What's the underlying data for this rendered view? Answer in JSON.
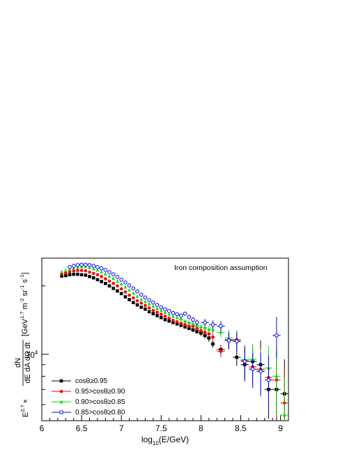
{
  "chart_data": {
    "type": "scatter",
    "annotation": "Iron composition assumption",
    "xlabel": {
      "main": "log",
      "sub": "10",
      "rest": "(E/GeV)"
    },
    "ylabel": {
      "factor": "E",
      "factor_exp": "2.7",
      "times": "×",
      "frac_num": "dN",
      "frac_den": "dE dA dΩ dt",
      "unit_open": "[GeV",
      "unit_exp1": "1.7",
      "unit_m": " m",
      "unit_exp2": "-2",
      "unit_sr": " sr",
      "unit_exp3": "-1",
      "unit_s": " s",
      "unit_exp4": "-1",
      "unit_close": "]"
    },
    "xlim": [
      6.0,
      9.1
    ],
    "ylim": [
      5100,
      26500
    ],
    "y_scale": "log",
    "x_ticks": [
      {
        "v": 6,
        "label": "6"
      },
      {
        "v": 6.5,
        "label": "6.5"
      },
      {
        "v": 7,
        "label": "7"
      },
      {
        "v": 7.5,
        "label": "7.5"
      },
      {
        "v": 8,
        "label": "8"
      },
      {
        "v": 8.5,
        "label": "8.5"
      },
      {
        "v": 9,
        "label": "9"
      }
    ],
    "y_major_tick": {
      "v": 10000,
      "base": "10",
      "exp": "4"
    },
    "grid": false,
    "legend_position": "bottom-left",
    "series": [
      {
        "name": "cosθ≥0.95",
        "color": "#000000",
        "marker": "filled-square",
        "points": [
          [
            6.25,
            22100,
            0,
            0
          ],
          [
            6.3,
            22200,
            0,
            0
          ],
          [
            6.35,
            22400,
            0,
            0
          ],
          [
            6.4,
            22500,
            0,
            0
          ],
          [
            6.45,
            22500,
            0,
            0
          ],
          [
            6.5,
            22400,
            0,
            0
          ],
          [
            6.55,
            22300,
            0,
            0
          ],
          [
            6.6,
            22000,
            0,
            0
          ],
          [
            6.65,
            21700,
            0,
            0
          ],
          [
            6.7,
            21300,
            0,
            0
          ],
          [
            6.75,
            20900,
            0,
            0
          ],
          [
            6.8,
            20500,
            0,
            0
          ],
          [
            6.85,
            20000,
            0,
            0
          ],
          [
            6.9,
            19500,
            0,
            0
          ],
          [
            6.95,
            19000,
            0,
            0
          ],
          [
            7.0,
            18500,
            0,
            0
          ],
          [
            7.05,
            17900,
            0,
            0
          ],
          [
            7.1,
            17400,
            0,
            0
          ],
          [
            7.15,
            16900,
            0,
            0
          ],
          [
            7.2,
            16500,
            0,
            0
          ],
          [
            7.25,
            16100,
            0,
            0
          ],
          [
            7.3,
            15800,
            0,
            0
          ],
          [
            7.35,
            15400,
            0,
            0
          ],
          [
            7.4,
            15100,
            0,
            0
          ],
          [
            7.45,
            14800,
            0,
            0
          ],
          [
            7.5,
            14500,
            0,
            0
          ],
          [
            7.55,
            14200,
            0,
            0
          ],
          [
            7.6,
            14000,
            0,
            0
          ],
          [
            7.65,
            13800,
            0,
            0
          ],
          [
            7.7,
            13600,
            0,
            0
          ],
          [
            7.75,
            13400,
            0,
            0
          ],
          [
            7.8,
            13200,
            0,
            0
          ],
          [
            7.85,
            13000,
            200,
            0.025
          ],
          [
            7.9,
            12800,
            250,
            0.025
          ],
          [
            7.95,
            12600,
            300,
            0.025
          ],
          [
            8.0,
            12400,
            350,
            0.025
          ],
          [
            8.05,
            12100,
            400,
            0.025
          ],
          [
            8.1,
            11800,
            450,
            0.025
          ],
          [
            8.15,
            11100,
            400,
            0.025
          ],
          [
            8.25,
            10500,
            500,
            0.05
          ],
          [
            8.35,
            11500,
            900,
            0.05
          ],
          [
            8.45,
            9700,
            800,
            0.05
          ],
          [
            8.55,
            9000,
            1400,
            0.05
          ],
          [
            8.65,
            9300,
            1400,
            0.05
          ],
          [
            8.75,
            9000,
            2500,
            0.05
          ],
          [
            8.85,
            7000,
            1800,
            0.05
          ],
          [
            8.95,
            7000,
            2500,
            0.05
          ],
          [
            9.05,
            6700,
            2800,
            0.05
          ]
        ]
      },
      {
        "name": "0.95>cosθ≥0.90",
        "color": "#ff0000",
        "marker": "filled-circle",
        "points": [
          [
            6.25,
            22600,
            0,
            0
          ],
          [
            6.3,
            22800,
            0,
            0
          ],
          [
            6.35,
            23100,
            0,
            0
          ],
          [
            6.4,
            23300,
            0,
            0
          ],
          [
            6.45,
            23400,
            0,
            0
          ],
          [
            6.5,
            23400,
            0,
            0
          ],
          [
            6.55,
            23300,
            0,
            0
          ],
          [
            6.6,
            23000,
            0,
            0
          ],
          [
            6.65,
            22700,
            0,
            0
          ],
          [
            6.7,
            22400,
            0,
            0
          ],
          [
            6.75,
            22000,
            0,
            0
          ],
          [
            6.8,
            21500,
            0,
            0
          ],
          [
            6.85,
            21000,
            0,
            0
          ],
          [
            6.9,
            20500,
            0,
            0
          ],
          [
            6.95,
            20000,
            0,
            0
          ],
          [
            7.0,
            19400,
            0,
            0
          ],
          [
            7.05,
            18800,
            0,
            0
          ],
          [
            7.1,
            18200,
            0,
            0
          ],
          [
            7.15,
            17700,
            0,
            0
          ],
          [
            7.2,
            17200,
            0,
            0
          ],
          [
            7.25,
            16800,
            0,
            0
          ],
          [
            7.3,
            16400,
            0,
            0
          ],
          [
            7.35,
            16000,
            0,
            0
          ],
          [
            7.4,
            15600,
            0,
            0
          ],
          [
            7.45,
            15300,
            0,
            0
          ],
          [
            7.5,
            15000,
            0,
            0
          ],
          [
            7.55,
            14700,
            0,
            0
          ],
          [
            7.6,
            14400,
            0,
            0
          ],
          [
            7.65,
            14100,
            0,
            0
          ],
          [
            7.7,
            13900,
            0,
            0
          ],
          [
            7.75,
            13700,
            0,
            0
          ],
          [
            7.8,
            13500,
            200,
            0.025
          ],
          [
            7.85,
            13300,
            250,
            0.025
          ],
          [
            7.9,
            13300,
            300,
            0.025
          ],
          [
            7.95,
            13000,
            300,
            0.025
          ],
          [
            8.0,
            12700,
            350,
            0.025
          ],
          [
            8.05,
            12500,
            400,
            0.025
          ],
          [
            8.1,
            12300,
            450,
            0.025
          ],
          [
            8.15,
            11900,
            450,
            0.025
          ],
          [
            8.25,
            10300,
            600,
            0.05
          ],
          [
            8.35,
            11600,
            1000,
            0.05
          ],
          [
            8.45,
            11600,
            1100,
            0.05
          ],
          [
            8.55,
            9400,
            1500,
            0.05
          ],
          [
            8.65,
            8800,
            1500,
            0.05
          ],
          [
            8.75,
            8600,
            2000,
            0.05
          ],
          [
            8.85,
            7900,
            2000,
            0.05
          ],
          [
            8.95,
            7700,
            2500,
            0.05
          ],
          [
            9.05,
            6100,
            2500,
            0.05
          ]
        ]
      },
      {
        "name": "0.90>cosθ≥0.85",
        "color": "#00dd00",
        "marker": "filled-triangle",
        "points": [
          [
            6.25,
            23100,
            0,
            0
          ],
          [
            6.3,
            23400,
            0,
            0
          ],
          [
            6.35,
            23700,
            0,
            0
          ],
          [
            6.4,
            24000,
            0,
            0
          ],
          [
            6.45,
            24200,
            0,
            0
          ],
          [
            6.5,
            24300,
            0,
            0
          ],
          [
            6.55,
            24300,
            0,
            0
          ],
          [
            6.6,
            24100,
            0,
            0
          ],
          [
            6.65,
            23800,
            0,
            0
          ],
          [
            6.7,
            23500,
            0,
            0
          ],
          [
            6.75,
            23100,
            0,
            0
          ],
          [
            6.8,
            22600,
            0,
            0
          ],
          [
            6.85,
            22100,
            0,
            0
          ],
          [
            6.9,
            21600,
            0,
            0
          ],
          [
            6.95,
            21000,
            0,
            0
          ],
          [
            7.0,
            20400,
            0,
            0
          ],
          [
            7.05,
            19800,
            0,
            0
          ],
          [
            7.1,
            19200,
            0,
            0
          ],
          [
            7.15,
            18600,
            0,
            0
          ],
          [
            7.2,
            18000,
            0,
            0
          ],
          [
            7.25,
            17500,
            0,
            0
          ],
          [
            7.3,
            17100,
            0,
            0
          ],
          [
            7.35,
            16700,
            0,
            0
          ],
          [
            7.4,
            16300,
            0,
            0
          ],
          [
            7.45,
            15900,
            0,
            0
          ],
          [
            7.5,
            15600,
            0,
            0
          ],
          [
            7.55,
            15300,
            0,
            0
          ],
          [
            7.6,
            15000,
            0,
            0
          ],
          [
            7.65,
            14700,
            0,
            0
          ],
          [
            7.7,
            14500,
            0,
            0
          ],
          [
            7.75,
            14300,
            200,
            0.025
          ],
          [
            7.8,
            14000,
            250,
            0.025
          ],
          [
            7.85,
            13800,
            250,
            0.025
          ],
          [
            7.9,
            13600,
            300,
            0.025
          ],
          [
            7.95,
            13400,
            300,
            0.025
          ],
          [
            8.0,
            13200,
            350,
            0.025
          ],
          [
            8.05,
            13100,
            400,
            0.025
          ],
          [
            8.1,
            12900,
            450,
            0.025
          ],
          [
            8.15,
            12800,
            500,
            0.025
          ],
          [
            8.25,
            12500,
            600,
            0.05
          ],
          [
            8.35,
            11800,
            1000,
            0.05
          ],
          [
            8.45,
            11500,
            1100,
            0.05
          ],
          [
            8.55,
            9500,
            1500,
            0.05
          ],
          [
            8.65,
            9500,
            1600,
            0.05
          ],
          [
            8.75,
            8500,
            2000,
            0.05
          ],
          [
            8.85,
            8700,
            2200,
            0.05
          ],
          [
            8.95,
            8000,
            2600,
            0.05
          ],
          [
            9.05,
            5400,
            2500,
            0.05
          ]
        ]
      },
      {
        "name": "0.85>cosθ≥0.80",
        "color": "#0000ff",
        "marker": "open-circle",
        "points": [
          [
            6.35,
            24200,
            0,
            0
          ],
          [
            6.4,
            24500,
            0,
            0
          ],
          [
            6.45,
            24700,
            0,
            0
          ],
          [
            6.5,
            24800,
            0,
            0
          ],
          [
            6.55,
            24800,
            0,
            0
          ],
          [
            6.6,
            24700,
            0,
            0
          ],
          [
            6.65,
            24500,
            0,
            0
          ],
          [
            6.7,
            24200,
            0,
            0
          ],
          [
            6.75,
            23900,
            0,
            0
          ],
          [
            6.8,
            23500,
            0,
            0
          ],
          [
            6.85,
            23000,
            0,
            0
          ],
          [
            6.9,
            22500,
            0,
            0
          ],
          [
            6.95,
            21900,
            0,
            0
          ],
          [
            7.0,
            21300,
            0,
            0
          ],
          [
            7.05,
            20700,
            0,
            0
          ],
          [
            7.1,
            20100,
            0,
            0
          ],
          [
            7.15,
            19500,
            0,
            0
          ],
          [
            7.2,
            18900,
            0,
            0
          ],
          [
            7.25,
            18300,
            0,
            0
          ],
          [
            7.3,
            17800,
            0,
            0
          ],
          [
            7.35,
            17300,
            0,
            0
          ],
          [
            7.4,
            16900,
            0,
            0
          ],
          [
            7.45,
            16500,
            0,
            0
          ],
          [
            7.5,
            16100,
            0,
            0
          ],
          [
            7.55,
            15800,
            200,
            0.025
          ],
          [
            7.6,
            15500,
            200,
            0.025
          ],
          [
            7.65,
            15200,
            250,
            0.025
          ],
          [
            7.7,
            15000,
            250,
            0.025
          ],
          [
            7.75,
            14800,
            300,
            0.025
          ],
          [
            7.8,
            15100,
            300,
            0.025
          ],
          [
            7.85,
            14600,
            350,
            0.025
          ],
          [
            7.9,
            14200,
            400,
            0.025
          ],
          [
            7.95,
            13800,
            400,
            0.025
          ],
          [
            8.05,
            13800,
            500,
            0.05
          ],
          [
            8.15,
            13500,
            600,
            0.05
          ],
          [
            8.25,
            13300,
            700,
            0.05
          ],
          [
            8.35,
            11500,
            1000,
            0.05
          ],
          [
            8.45,
            11400,
            1100,
            0.05
          ],
          [
            8.55,
            9300,
            1500,
            0.05
          ],
          [
            8.65,
            8600,
            1500,
            0.05
          ],
          [
            8.75,
            8400,
            1800,
            0.05
          ],
          [
            8.85,
            7700,
            2200,
            0.05
          ],
          [
            8.95,
            12100,
            2500,
            0.05
          ]
        ]
      }
    ]
  }
}
